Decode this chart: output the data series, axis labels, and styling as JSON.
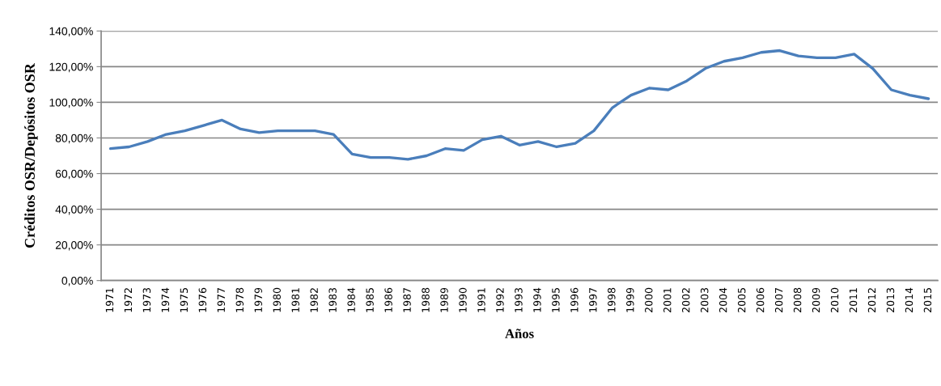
{
  "chart_data": {
    "type": "line",
    "xlabel": "Años",
    "ylabel": "Créditos OSR/Depósitos OSR",
    "categories": [
      "1971",
      "1972",
      "1973",
      "1974",
      "1975",
      "1976",
      "1977",
      "1978",
      "1979",
      "1980",
      "1981",
      "1982",
      "1983",
      "1984",
      "1985",
      "1986",
      "1987",
      "1988",
      "1989",
      "1990",
      "1991",
      "1992",
      "1993",
      "1994",
      "1995",
      "1996",
      "1997",
      "1998",
      "1999",
      "2000",
      "2001",
      "2002",
      "2003",
      "2004",
      "2005",
      "2006",
      "2007",
      "2008",
      "2009",
      "2010",
      "2011",
      "2012",
      "2013",
      "2014",
      "2015"
    ],
    "series": [
      {
        "color": "#4a7ebb",
        "values": [
          74,
          75,
          78,
          82,
          84,
          87,
          90,
          85,
          83,
          84,
          84,
          84,
          82,
          71,
          69,
          69,
          68,
          70,
          74,
          73,
          79,
          81,
          76,
          78,
          75,
          77,
          84,
          97,
          104,
          108,
          107,
          112,
          119,
          123,
          125,
          128,
          129,
          126,
          125,
          125,
          127,
          119,
          107,
          104,
          102
        ]
      }
    ],
    "ylim": [
      0,
      140
    ],
    "yticks": [
      {
        "value": 0,
        "label": "0,00%"
      },
      {
        "value": 20,
        "label": "20,00%"
      },
      {
        "value": 40,
        "label": "40,00%"
      },
      {
        "value": 60,
        "label": "60,00%"
      },
      {
        "value": 80,
        "label": "80,00%"
      },
      {
        "value": 100,
        "label": "100,00%"
      },
      {
        "value": 120,
        "label": "120,00%"
      },
      {
        "value": 140,
        "label": "140,00%"
      }
    ],
    "grid": "y",
    "marker": "none",
    "line_style": "solid"
  }
}
